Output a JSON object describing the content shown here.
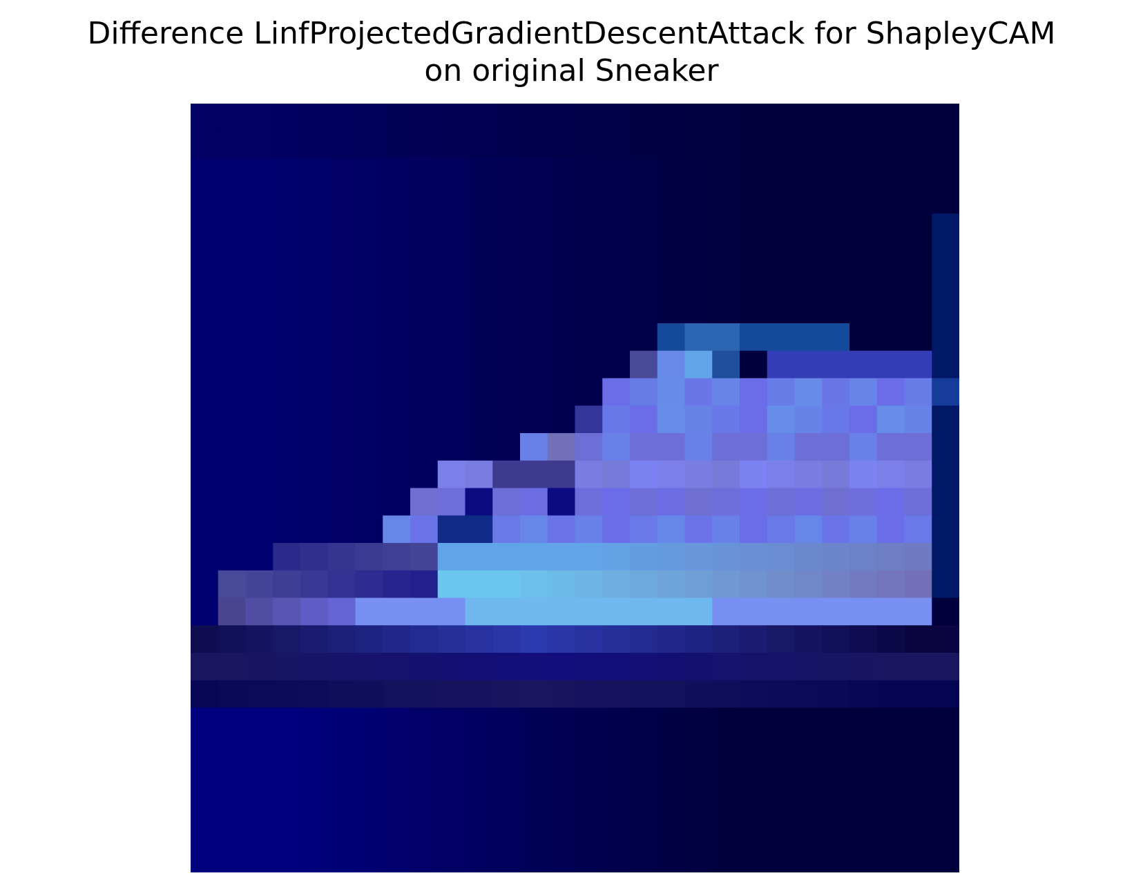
{
  "figure": {
    "title_line1": "Difference LinfProjectedGradientDescentAttack for ShapleyCAM",
    "title_line2": "on original Sneaker"
  },
  "image": {
    "description_name": "sneaker-attack-difference-heatmap",
    "colors": {
      "deep_navy": "#02003c",
      "royal_blue": "#000070",
      "periwinkle": "#6b6de8",
      "sky_cyan": "#6cc6ef",
      "lavender_gray": "#7370b8"
    }
  }
}
